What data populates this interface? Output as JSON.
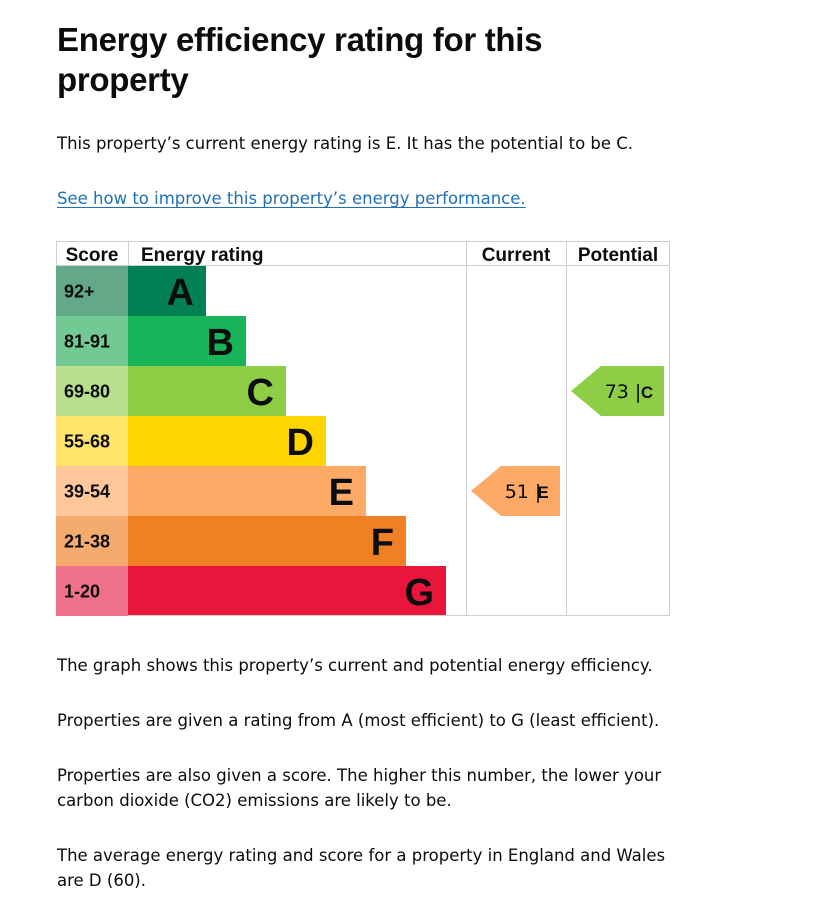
{
  "page": {
    "title": "Energy efficiency rating for this property",
    "intro": "This property’s current energy rating is E. It has the potential to be C.",
    "improve_link": "See how to improve this property’s energy performance.",
    "paragraphs": [
      "The graph shows this property’s current and potential energy efficiency.",
      "Properties are given a rating from A (most efficient) to G (least efficient).",
      "Properties are also given a score. The higher this number, the lower your carbon dioxide (CO2) emissions are likely to be.",
      "The average energy rating and score for a property in England and Wales are D (60)."
    ]
  },
  "chart_data": {
    "type": "bar",
    "columns": [
      "Score",
      "Energy rating",
      "Current",
      "Potential"
    ],
    "bands": [
      {
        "letter": "A",
        "score": "92+",
        "bar_color": "#008054",
        "score_color": "#64a88a"
      },
      {
        "letter": "B",
        "score": "81-91",
        "bar_color": "#19b459",
        "score_color": "#72c993"
      },
      {
        "letter": "C",
        "score": "69-80",
        "bar_color": "#8dce46",
        "score_color": "#b8df8e"
      },
      {
        "letter": "D",
        "score": "55-68",
        "bar_color": "#ffd500",
        "score_color": "#ffe36b"
      },
      {
        "letter": "E",
        "score": "39-54",
        "bar_color": "#fcaa65",
        "score_color": "#fdc79a"
      },
      {
        "letter": "F",
        "score": "21-38",
        "bar_color": "#ef8023",
        "score_color": "#f4ab6e"
      },
      {
        "letter": "G",
        "score": "1-20",
        "bar_color": "#e9153b",
        "score_color": "#f0728a"
      }
    ],
    "current": {
      "value": 51,
      "letter": "E"
    },
    "potential": {
      "value": 73,
      "letter": "C"
    }
  }
}
